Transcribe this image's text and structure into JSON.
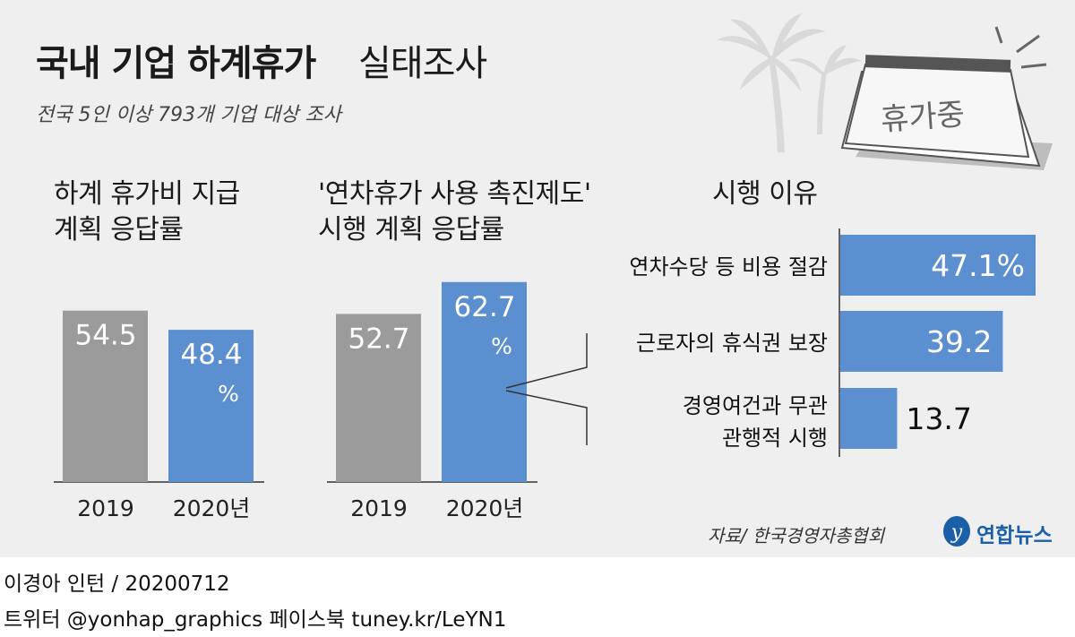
{
  "header": {
    "title_main": "국내 기업 하계휴가",
    "title_sub": "실태조사",
    "subtitle": "전국 5인 이상 793개 기업 대상 조사"
  },
  "calendar": {
    "label": "휴가중"
  },
  "colors": {
    "gray_bar": "#9b9b9b",
    "blue_bar": "#5b8fd0",
    "panel": "#efefef"
  },
  "chart_data": [
    {
      "type": "bar",
      "title_lines": [
        "하계 휴가비 지급",
        "계획 응답률"
      ],
      "categories": [
        "2019",
        "2020년"
      ],
      "values": [
        54.5,
        48.4
      ],
      "labels": [
        "54.5",
        "48.4"
      ],
      "unit": "%",
      "ylim": [
        0,
        100
      ]
    },
    {
      "type": "bar",
      "title_lines": [
        "'연차휴가 사용 촉진제도'",
        "시행 계획 응답률"
      ],
      "categories": [
        "2019",
        "2020년"
      ],
      "values": [
        52.7,
        62.7
      ],
      "labels": [
        "52.7",
        "62.7"
      ],
      "unit": "%",
      "ylim": [
        0,
        100
      ]
    },
    {
      "type": "bar",
      "orientation": "horizontal",
      "title": "시행 이유",
      "categories": [
        "연차수당 등 비용 절감",
        "근로자의 휴식권 보장",
        "경영여건과 무관 관행적 시행"
      ],
      "category_lines": [
        [
          "연차수당 등 비용 절감"
        ],
        [
          "근로자의 휴식권 보장"
        ],
        [
          "경영여건과 무관",
          "관행적 시행"
        ]
      ],
      "values": [
        47.1,
        39.2,
        13.7
      ],
      "labels": [
        "47.1%",
        "39.2",
        "13.7"
      ]
    }
  ],
  "footer": {
    "source": "자료/ 한국경영자총협회",
    "logo": "연합뉴스",
    "credit": "이경아 인턴 / 20200712",
    "social": "트위터 @yonhap_graphics  페이스북 tuney.kr/LeYN1"
  }
}
